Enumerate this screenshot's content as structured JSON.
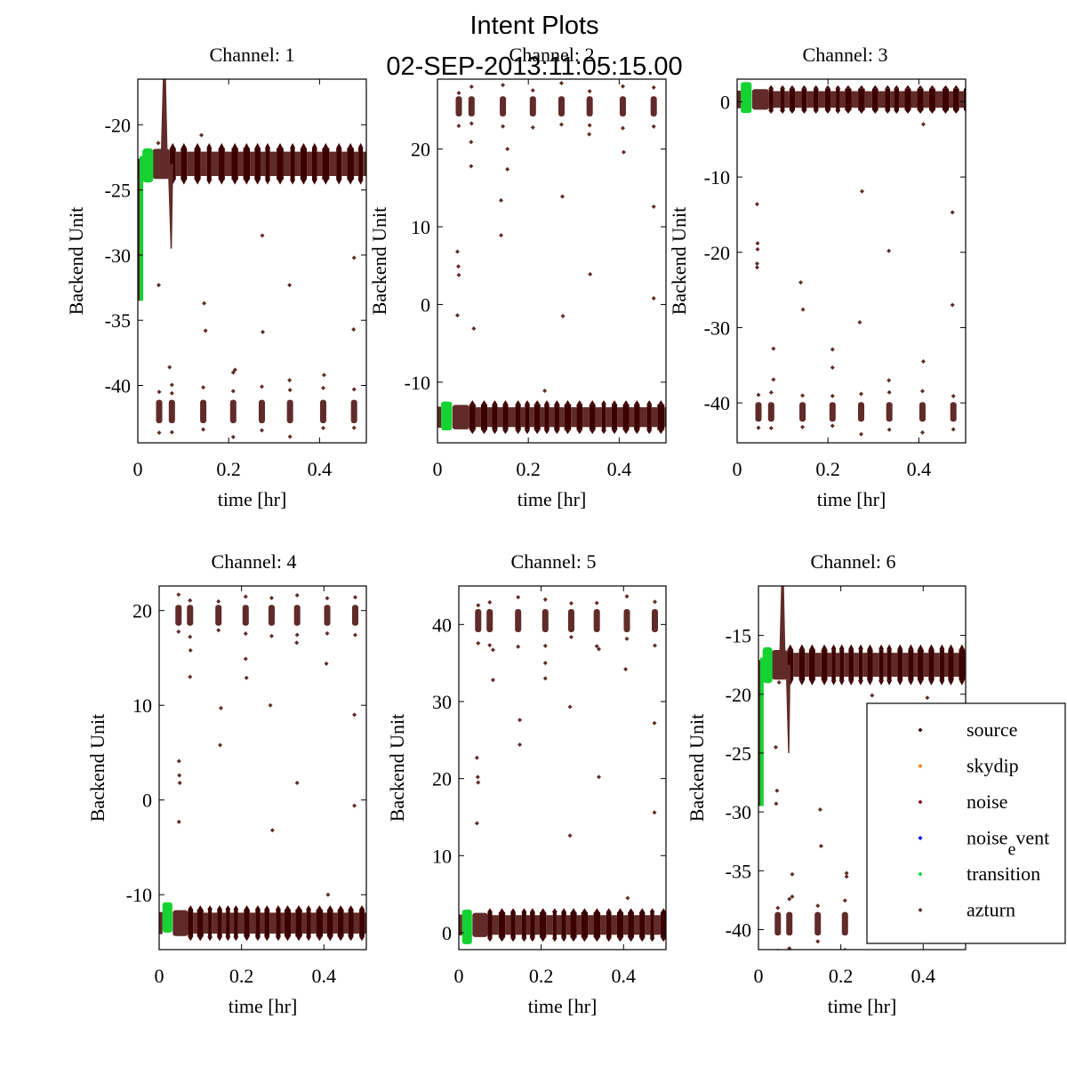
{
  "figure": {
    "title_line1": "Intent Plots",
    "title_line2": "02-SEP-2013:11:05:15.00"
  },
  "colors": {
    "source": "#3c0000",
    "skydip": "#ff7f1e",
    "noise": "#8c0a1e",
    "noise_event": "#0000ff",
    "transition": "#14d232",
    "azturn": "#602b28"
  },
  "legend": {
    "placement": "lower-right of Channel 6",
    "entries": [
      {
        "key": "source",
        "label": "source"
      },
      {
        "key": "skydip",
        "label": "skydip"
      },
      {
        "key": "noise",
        "label": "noise"
      },
      {
        "key": "noise_event",
        "label": "noise",
        "sub": "e",
        "label_tail": "vent"
      },
      {
        "key": "transition",
        "label": "transition"
      },
      {
        "key": "azturn",
        "label": "azturn"
      }
    ]
  },
  "chart_data": [
    {
      "type": "scatter",
      "title": "Channel: 1",
      "xlabel": "time [hr]",
      "ylabel": "Backend Unit",
      "xlim": [
        0,
        0.503
      ],
      "ylim": [
        -44.4,
        -16.5
      ],
      "xticks": [
        0,
        0.2,
        0.4
      ],
      "xtick_labels": [
        "0",
        "0.2",
        "0.4"
      ],
      "yticks": [
        -40,
        -35,
        -30,
        -25,
        -20
      ],
      "ytick_labels": [
        "-40",
        "-35",
        "-30",
        "-25",
        "-20"
      ],
      "baseline": -23.0,
      "band_halfwidth": 1.1,
      "low_level": -42.0,
      "low_halfwidth": 0.9,
      "spike": {
        "peak": -16.5,
        "trough": -29.5
      },
      "transition_range": [
        -33.5,
        -21.8
      ],
      "outliers": [
        [
          0.045,
          -21.4
        ],
        [
          0.046,
          -32.3
        ],
        [
          0.07,
          -38.6
        ],
        [
          0.075,
          -40.6
        ],
        [
          0.14,
          -20.8
        ],
        [
          0.146,
          -33.7
        ],
        [
          0.149,
          -35.8
        ],
        [
          0.21,
          -39.0
        ],
        [
          0.214,
          -38.8
        ],
        [
          0.274,
          -28.5
        ],
        [
          0.275,
          -35.9
        ],
        [
          0.334,
          -32.3
        ],
        [
          0.334,
          -39.6
        ],
        [
          0.41,
          -39.2
        ],
        [
          0.476,
          -30.2
        ],
        [
          0.475,
          -35.7
        ]
      ]
    },
    {
      "type": "scatter",
      "title": "Channel: 2",
      "xlabel": "time [hr]",
      "ylabel": "Backend Unit",
      "xlim": [
        0,
        0.503
      ],
      "ylim": [
        -17.8,
        29.0
      ],
      "xticks": [
        0,
        0.2,
        0.4
      ],
      "xtick_labels": [
        "0",
        "0.2",
        "0.4"
      ],
      "yticks": [
        -10,
        0,
        10,
        20
      ],
      "ytick_labels": [
        "-10",
        "0",
        "10",
        "20"
      ],
      "baseline": -14.5,
      "band_halfwidth": 1.5,
      "high_level": 25.5,
      "high_halfwidth": 1.3,
      "transition_range": [
        -16.2,
        -12.5
      ],
      "outliers": [
        [
          0.044,
          6.8
        ],
        [
          0.046,
          4.9
        ],
        [
          0.047,
          3.8
        ],
        [
          0.074,
          20.9
        ],
        [
          0.074,
          17.8
        ],
        [
          0.14,
          13.4
        ],
        [
          0.14,
          8.9
        ],
        [
          0.154,
          17.4
        ],
        [
          0.154,
          20.0
        ],
        [
          0.236,
          -11.1
        ],
        [
          0.275,
          13.9
        ],
        [
          0.276,
          -1.5
        ],
        [
          0.334,
          21.9
        ],
        [
          0.336,
          3.9
        ],
        [
          0.41,
          19.6
        ],
        [
          0.476,
          12.6
        ],
        [
          0.476,
          0.8
        ],
        [
          0.044,
          -1.4
        ],
        [
          0.08,
          -3.1
        ]
      ]
    },
    {
      "type": "scatter",
      "title": "Channel: 3",
      "xlabel": "time [hr]",
      "ylabel": "Backend Unit",
      "xlim": [
        0,
        0.503
      ],
      "ylim": [
        -45.3,
        3.0
      ],
      "xticks": [
        0,
        0.2,
        0.4
      ],
      "xtick_labels": [
        "0",
        "0.2",
        "0.4"
      ],
      "yticks": [
        -40,
        -30,
        -20,
        -10,
        0
      ],
      "ytick_labels": [
        "-40",
        "-30",
        "-20",
        "-10",
        "0"
      ],
      "baseline": 0.3,
      "band_halfwidth": 1.3,
      "low_level": -41.2,
      "low_halfwidth": 1.3,
      "transition_range": [
        -1.5,
        2.6
      ],
      "outliers": [
        [
          0.044,
          -13.6
        ],
        [
          0.045,
          -18.8
        ],
        [
          0.045,
          -19.6
        ],
        [
          0.044,
          -22.0
        ],
        [
          0.044,
          -21.5
        ],
        [
          0.14,
          -24.0
        ],
        [
          0.145,
          -27.6
        ],
        [
          0.275,
          -11.9
        ],
        [
          0.27,
          -29.3
        ],
        [
          0.21,
          -32.9
        ],
        [
          0.21,
          -35.3
        ],
        [
          0.334,
          -19.8
        ],
        [
          0.334,
          -37.0
        ],
        [
          0.41,
          -34.5
        ],
        [
          0.474,
          -14.7
        ],
        [
          0.474,
          -27.0
        ],
        [
          0.08,
          -32.8
        ],
        [
          0.08,
          -36.9
        ],
        [
          0.41,
          -3.0
        ]
      ]
    },
    {
      "type": "scatter",
      "title": "Channel: 4",
      "xlabel": "time [hr]",
      "ylabel": "Backend Unit",
      "xlim": [
        0,
        0.503
      ],
      "ylim": [
        -15.8,
        22.6
      ],
      "xticks": [
        0,
        0.2,
        0.4
      ],
      "xtick_labels": [
        "0",
        "0.2",
        "0.4"
      ],
      "yticks": [
        -10,
        0,
        10,
        20
      ],
      "ytick_labels": [
        "-10",
        "0",
        "10",
        "20"
      ],
      "baseline": -13.0,
      "band_halfwidth": 1.3,
      "high_level": 19.5,
      "high_halfwidth": 1.1,
      "transition_range": [
        -14.0,
        -10.8
      ],
      "outliers": [
        [
          0.048,
          4.1
        ],
        [
          0.049,
          2.6
        ],
        [
          0.05,
          1.8
        ],
        [
          0.076,
          15.8
        ],
        [
          0.075,
          13.0
        ],
        [
          0.15,
          9.7
        ],
        [
          0.148,
          5.8
        ],
        [
          0.21,
          14.9
        ],
        [
          0.212,
          12.9
        ],
        [
          0.27,
          10.0
        ],
        [
          0.275,
          -3.2
        ],
        [
          0.334,
          16.6
        ],
        [
          0.335,
          1.8
        ],
        [
          0.406,
          14.4
        ],
        [
          0.474,
          9.0
        ],
        [
          0.474,
          -0.6
        ],
        [
          0.048,
          -2.3
        ],
        [
          0.41,
          -10.0
        ]
      ]
    },
    {
      "type": "scatter",
      "title": "Channel: 5",
      "xlabel": "time [hr]",
      "ylabel": "Backend Unit",
      "xlim": [
        0,
        0.503
      ],
      "ylim": [
        -2.2,
        45.0
      ],
      "xticks": [
        0,
        0.2,
        0.4
      ],
      "xtick_labels": [
        "0",
        "0.2",
        "0.4"
      ],
      "yticks": [
        0,
        10,
        20,
        30,
        40
      ],
      "ytick_labels": [
        "0",
        "10",
        "20",
        "30",
        "40"
      ],
      "baseline": 1.0,
      "band_halfwidth": 1.5,
      "high_level": 40.5,
      "high_halfwidth": 1.5,
      "transition_range": [
        -1.5,
        3.0
      ],
      "outliers": [
        [
          0.044,
          22.7
        ],
        [
          0.046,
          20.2
        ],
        [
          0.047,
          19.5
        ],
        [
          0.083,
          36.7
        ],
        [
          0.083,
          32.8
        ],
        [
          0.148,
          27.6
        ],
        [
          0.148,
          24.4
        ],
        [
          0.21,
          35.0
        ],
        [
          0.21,
          33.0
        ],
        [
          0.27,
          29.3
        ],
        [
          0.27,
          12.6
        ],
        [
          0.34,
          36.8
        ],
        [
          0.34,
          20.2
        ],
        [
          0.405,
          34.2
        ],
        [
          0.475,
          27.2
        ],
        [
          0.475,
          15.6
        ],
        [
          0.044,
          14.2
        ],
        [
          0.41,
          4.5
        ]
      ]
    },
    {
      "type": "scatter",
      "title": "Channel: 6",
      "xlabel": "time [hr]",
      "ylabel": "Backend Unit",
      "xlim": [
        0,
        0.503
      ],
      "ylim": [
        -41.7,
        -10.8
      ],
      "xticks": [
        0,
        0.2,
        0.4
      ],
      "xtick_labels": [
        "0",
        "0.2",
        "0.4"
      ],
      "yticks": [
        -40,
        -35,
        -30,
        -25,
        -20,
        -15
      ],
      "ytick_labels": [
        "-40",
        "-35",
        "-30",
        "-25",
        "-20",
        "-15"
      ],
      "baseline": -17.5,
      "band_halfwidth": 1.2,
      "low_level": -39.5,
      "low_halfwidth": 1.0,
      "low_clusters_until": 0.22,
      "spike": {
        "peak": -10.8,
        "trough": -25.0
      },
      "transition_range": [
        -29.5,
        -16.0
      ],
      "outliers": [
        [
          0.042,
          -24.5
        ],
        [
          0.045,
          -28.2
        ],
        [
          0.043,
          -29.3
        ],
        [
          0.082,
          -35.3
        ],
        [
          0.082,
          -37.2
        ],
        [
          0.15,
          -29.8
        ],
        [
          0.152,
          -32.9
        ],
        [
          0.214,
          -35.2
        ],
        [
          0.214,
          -35.5
        ],
        [
          0.05,
          -19.0
        ],
        [
          0.276,
          -20.1
        ],
        [
          0.41,
          -20.3
        ]
      ]
    }
  ]
}
